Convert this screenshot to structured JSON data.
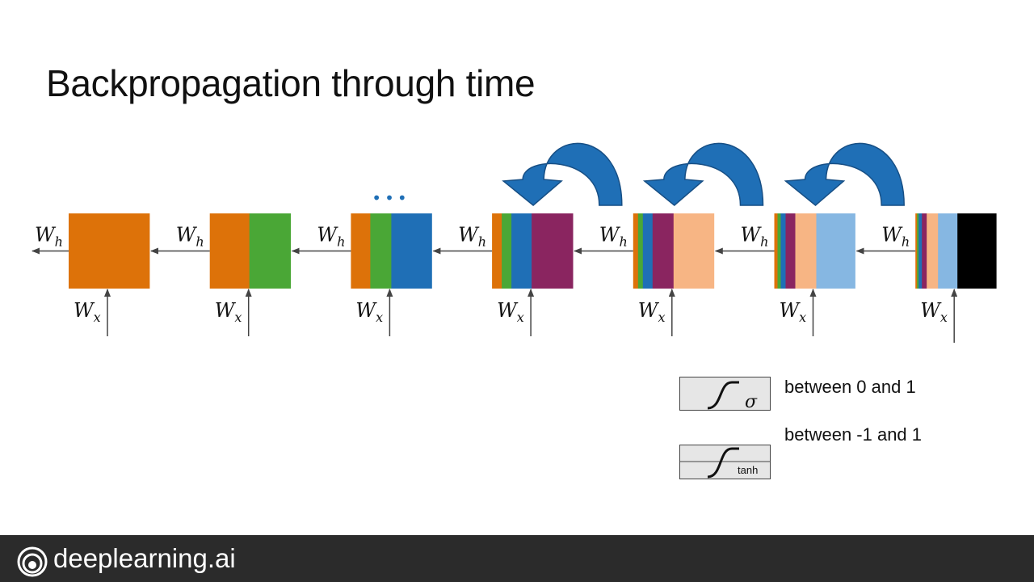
{
  "slide": {
    "title": "Backpropagation through time"
  },
  "diagram": {
    "wh_label_base": "W",
    "wh_label_sub": "h",
    "wx_label_base": "W",
    "wx_label_sub": "x",
    "ellipsis": "•••",
    "colors": {
      "orange": "#dd7209",
      "green": "#4aa736",
      "blue": "#1f6fb6",
      "purple": "#8a2560",
      "peach": "#f7b584",
      "lightblue": "#86b7e2",
      "black": "#000000",
      "arrow_blue": "#1f6fb6"
    },
    "cells": [
      [
        "orange"
      ],
      [
        "orange",
        "green"
      ],
      [
        "orange",
        "green",
        "blue"
      ],
      [
        "orange",
        "green",
        "blue",
        "purple"
      ],
      [
        "orange",
        "green",
        "blue",
        "purple",
        "peach"
      ],
      [
        "orange",
        "green",
        "blue",
        "purple",
        "peach",
        "lightblue"
      ],
      [
        "orange",
        "green",
        "blue",
        "purple",
        "peach",
        "lightblue",
        "black"
      ]
    ]
  },
  "legend": {
    "sigma_symbol": "σ",
    "sigma_text": "between 0 and 1",
    "tanh_label": "tanh",
    "tanh_text": "between -1 and 1"
  },
  "footer": {
    "brand": "deeplearning.ai"
  }
}
